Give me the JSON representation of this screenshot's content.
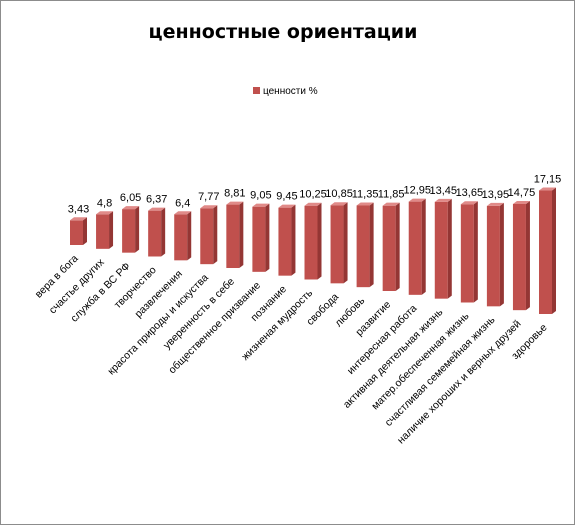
{
  "chart_data": {
    "type": "bar",
    "title": "ценностные ориентации",
    "legend": {
      "position": "top",
      "entries": [
        "ценности %"
      ]
    },
    "categories": [
      "вера в бога",
      "счастье других",
      "служба в ВС РФ",
      "творчество",
      "развлечения",
      "красота природы и искуства",
      "уверенность в себе",
      "общественное призвание",
      "познание",
      "жизненая мудрость",
      "свобода",
      "любовь",
      "развитие",
      "интересная работа",
      "активная деятельная жизнь",
      "матер.обеспеченная жизнь",
      "счастливая семемейная жизнь",
      "наличие хороших и верных друзей",
      "здоровье"
    ],
    "series": [
      {
        "name": "ценности %",
        "values": [
          3.43,
          4.8,
          6.05,
          6.37,
          6.4,
          7.77,
          8.81,
          9.05,
          9.45,
          10.25,
          10.85,
          11.35,
          11.85,
          12.95,
          13.45,
          13.65,
          13.95,
          14.75,
          17.15
        ],
        "labels": [
          "3,43",
          "4,8",
          "6,05",
          "6,37",
          "6,4",
          "7,77",
          "8,81",
          "9,05",
          "9,45",
          "10,25",
          "10,85",
          "11,35",
          "11,85",
          "12,95",
          "13,45",
          "13,65",
          "13,95",
          "14,75",
          "17,15"
        ]
      }
    ],
    "ylim": [
      0,
      20
    ],
    "grid": false,
    "colors": {
      "bar": "#c0504d",
      "bar_top": "#e08a88",
      "bar_side": "#943634"
    }
  }
}
